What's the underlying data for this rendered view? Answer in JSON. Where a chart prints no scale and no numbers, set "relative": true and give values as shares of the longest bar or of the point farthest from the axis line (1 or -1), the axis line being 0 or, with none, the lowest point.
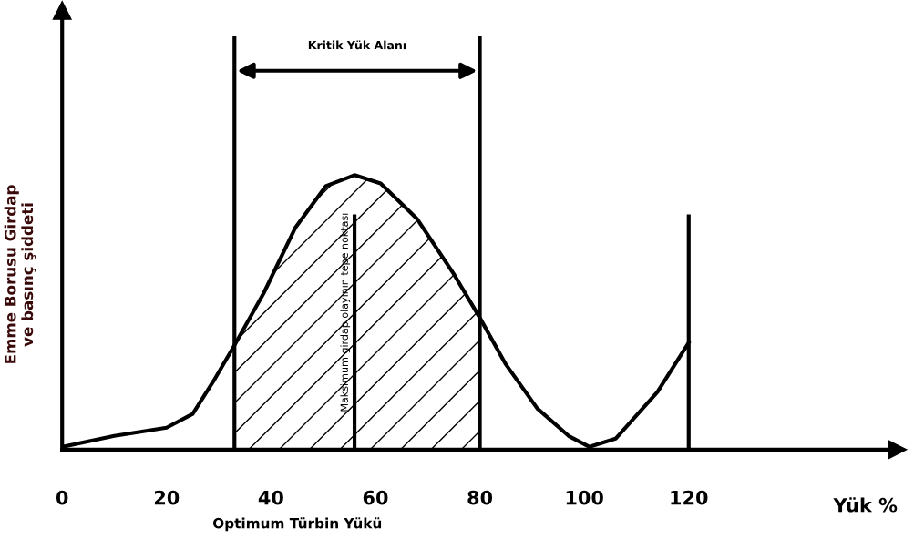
{
  "chart_data": {
    "type": "line",
    "relative": true,
    "xlabel": "Yük %",
    "ylabel": "Emme Borusu Girdap\nve basınç şiddeti",
    "x": [
      0,
      10,
      20,
      25,
      29,
      33,
      38.6,
      44.7,
      50.5,
      56,
      61,
      68,
      75,
      80,
      85,
      91,
      97,
      101,
      106,
      114,
      120
    ],
    "series": [
      {
        "color": "#000000",
        "values": [
          0.01,
          0.05,
          0.08,
          0.13,
          0.25,
          0.38,
          0.57,
          0.81,
          0.96,
          1.0,
          0.97,
          0.84,
          0.64,
          0.48,
          0.31,
          0.15,
          0.05,
          0.01,
          0.04,
          0.21,
          0.39
        ]
      }
    ],
    "xlim": [
      0,
      160
    ],
    "xticks": [
      0,
      20,
      40,
      60,
      80,
      100,
      120
    ],
    "bands": [
      {
        "axis": "x",
        "from": 33,
        "to": 80,
        "label": "Kritik Yük Alanı"
      }
    ],
    "annotations": [
      "Optimum Türbin Yükü"
    ],
    "ref_lines": [
      {
        "axis": "x",
        "value": 33,
        "label": null
      },
      {
        "axis": "x",
        "value": 56,
        "label": "Maksimum girdap olayının tepe noktası"
      },
      {
        "axis": "x",
        "value": 80,
        "label": null
      },
      {
        "axis": "x",
        "value": 120,
        "label": null
      }
    ],
    "grid": false,
    "legend": false,
    "marker": "none",
    "line_style": "solid"
  }
}
